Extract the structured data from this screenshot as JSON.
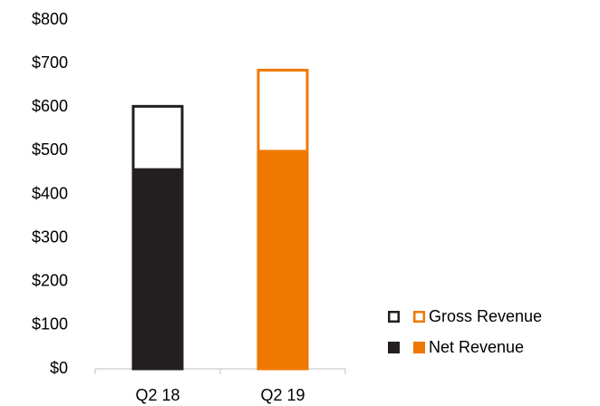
{
  "chart_data": {
    "type": "bar",
    "categories": [
      "Q2 18",
      "Q2 19"
    ],
    "colors": [
      "#231f20",
      "#ef7800"
    ],
    "series": [
      {
        "name": "Gross Revenue",
        "style": "outline",
        "values": [
          605,
          688
        ]
      },
      {
        "name": "Net Revenue",
        "style": "filled",
        "values": [
          460,
          502
        ]
      }
    ],
    "ylim": [
      0,
      800
    ],
    "yticks": [
      {
        "value": 0,
        "label": "$0"
      },
      {
        "value": 100,
        "label": "$100"
      },
      {
        "value": 200,
        "label": "$200"
      },
      {
        "value": 300,
        "label": "$300"
      },
      {
        "value": 400,
        "label": "$400"
      },
      {
        "value": 500,
        "label": "$500"
      },
      {
        "value": 600,
        "label": "$600"
      },
      {
        "value": 700,
        "label": "$700"
      },
      {
        "value": 800,
        "label": "$800"
      }
    ],
    "grid": false,
    "legend": "right"
  }
}
